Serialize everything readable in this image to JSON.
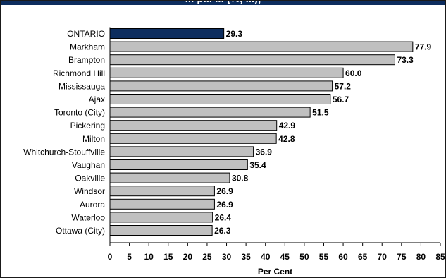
{
  "chart_data": {
    "type": "bar",
    "orientation": "horizontal",
    "title": "... p... ... (%, ...),",
    "xlabel": "Per Cent",
    "ylabel": "",
    "xlim": [
      0,
      85
    ],
    "ticks": [
      0,
      5,
      10,
      15,
      20,
      25,
      30,
      35,
      40,
      45,
      50,
      55,
      60,
      65,
      70,
      75,
      80,
      85
    ],
    "grid": false,
    "legend": "none",
    "categories": [
      "ONTARIO",
      "Markham",
      "Brampton",
      "Richmond Hill",
      "Mississauga",
      "Ajax",
      "Toronto (City)",
      "Pickering",
      "Milton",
      "Whitchurch-Stouffville",
      "Vaughan",
      "Oakville",
      "Windsor",
      "Aurora",
      "Waterloo",
      "Ottawa (City)"
    ],
    "values": [
      29.3,
      77.9,
      73.3,
      60.0,
      57.2,
      56.7,
      51.5,
      42.9,
      42.8,
      36.9,
      35.4,
      30.8,
      26.9,
      26.9,
      26.4,
      26.3
    ],
    "value_labels": [
      "29.3",
      "77.9",
      "73.3",
      "60.0",
      "57.2",
      "56.7",
      "51.5",
      "42.9",
      "42.8",
      "36.9",
      "35.4",
      "30.8",
      "26.9",
      "26.9",
      "26.4",
      "26.3"
    ],
    "highlight_category": "ONTARIO",
    "colors": {
      "highlight": "#0d2d5e",
      "bar": "#c0c0c0",
      "bar_border": "#000000",
      "title_bar": "#0d2d5e"
    }
  }
}
